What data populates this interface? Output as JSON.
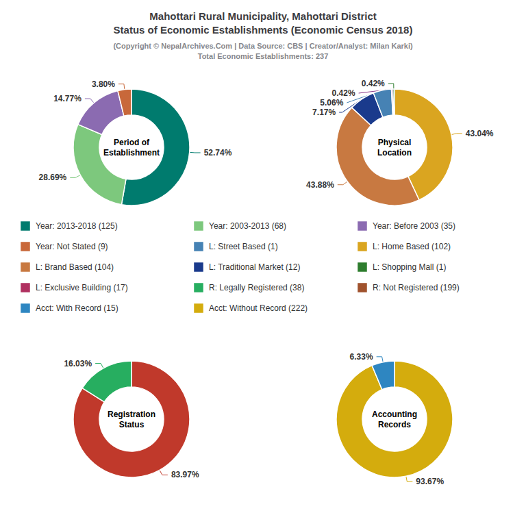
{
  "title": "Mahottari Rural Municipality, Mahottari District\nStatus of Economic Establishments (Economic Census 2018)",
  "subtitle": "(Copyright © NepalArchives.Com | Data Source: CBS | Creator/Analyst: Milan Karki)\nTotal Economic Establishments: 237",
  "chart_data": [
    {
      "type": "pie",
      "title": "Period of\nEstablishment",
      "values": [
        52.74,
        28.69,
        14.77,
        3.8
      ],
      "value_labels": [
        "52.74%",
        "28.69%",
        "14.77%",
        "3.80%"
      ],
      "colors": [
        "#007B6E",
        "#7DC87D",
        "#8B6BB1",
        "#C8683A"
      ],
      "data_labels": true
    },
    {
      "type": "pie",
      "title": "Physical\nLocation",
      "values": [
        43.04,
        43.88,
        7.17,
        5.06,
        0.42,
        0.42
      ],
      "value_labels": [
        "43.04%",
        "43.88%",
        "7.17%",
        "5.06%",
        "0.42%",
        "0.42%"
      ],
      "colors": [
        "#DAA520",
        "#C87941",
        "#1A3A8C",
        "#4682B4",
        "#8B3A8B",
        "#2E7D2E"
      ],
      "data_labels": true
    },
    {
      "type": "pie",
      "title": "Registration\nStatus",
      "values": [
        83.97,
        16.03
      ],
      "value_labels": [
        "83.97%",
        "16.03%"
      ],
      "colors": [
        "#C0392B",
        "#27AE60"
      ],
      "data_labels": true
    },
    {
      "type": "pie",
      "title": "Accounting\nRecords",
      "values": [
        93.67,
        6.33
      ],
      "value_labels": [
        "93.67%",
        "6.33%"
      ],
      "colors": [
        "#D4AC0D",
        "#2E86C1"
      ],
      "data_labels": true
    }
  ],
  "legend_items": [
    {
      "name": "Year: 2013-2018 (125)",
      "color": "#007B6E"
    },
    {
      "name": "Year: 2003-2013 (68)",
      "color": "#7DC87D"
    },
    {
      "name": "Year: Before 2003 (35)",
      "color": "#8B6BB1"
    },
    {
      "name": "Year: Not Stated (9)",
      "color": "#C8683A"
    },
    {
      "name": "L: Street Based (1)",
      "color": "#4682B4"
    },
    {
      "name": "L: Home Based (102)",
      "color": "#DAA520"
    },
    {
      "name": "L: Brand Based (104)",
      "color": "#C87941"
    },
    {
      "name": "L: Traditional Market (12)",
      "color": "#1A3A8C"
    },
    {
      "name": "L: Shopping Mall (1)",
      "color": "#2E7D2E"
    },
    {
      "name": "L: Exclusive Building (17)",
      "color": "#B03060"
    },
    {
      "name": "R: Legally Registered (38)",
      "color": "#27AE60"
    },
    {
      "name": "R: Not Registered (199)",
      "color": "#A0522D"
    },
    {
      "name": "Acct: With Record (15)",
      "color": "#2E86C1"
    },
    {
      "name": "Acct: Without Record (222)",
      "color": "#D4AC0D"
    }
  ]
}
